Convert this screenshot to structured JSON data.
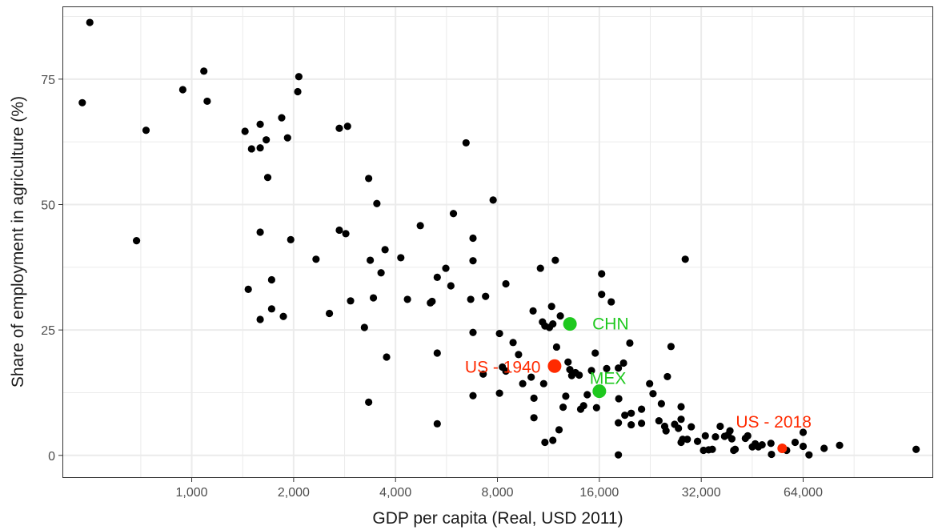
{
  "chart_data": {
    "type": "scatter",
    "xlabel": "GDP per capita (Real, USD 2011)",
    "ylabel": "Share of employment in agriculture (%)",
    "x_scale": "log2",
    "xlim": [
      415,
      155000
    ],
    "ylim": [
      -4.5,
      89.5
    ],
    "x_ticks": [
      {
        "value": 1000,
        "label": "1,000"
      },
      {
        "value": 2000,
        "label": "2,000"
      },
      {
        "value": 4000,
        "label": "4,000"
      },
      {
        "value": 8000,
        "label": "8,000"
      },
      {
        "value": 16000,
        "label": "16,000"
      },
      {
        "value": 32000,
        "label": "32,000"
      },
      {
        "value": 64000,
        "label": "64,000"
      }
    ],
    "y_ticks": [
      {
        "value": 0,
        "label": "0"
      },
      {
        "value": 25,
        "label": "25"
      },
      {
        "value": 50,
        "label": "50"
      },
      {
        "value": 75,
        "label": "75"
      }
    ],
    "grid": true,
    "colors": {
      "default": "#000000",
      "highlight_red": "#ff2a00",
      "highlight_green": "#1ec81e",
      "grid": "#ebebeb",
      "border": "#333333"
    },
    "highlights": [
      {
        "label": "US - 1940",
        "x": 11800,
        "y": 17.8,
        "color": "#ff2a00",
        "label_side": "left"
      },
      {
        "label": "CHN",
        "x": 13100,
        "y": 26.2,
        "color": "#1ec81e",
        "label_side": "right"
      },
      {
        "label": "MEX",
        "x": 16000,
        "y": 12.8,
        "color": "#1ec81e",
        "label_side": "above-right"
      },
      {
        "label": "US - 2018",
        "x": 55500,
        "y": 1.4,
        "color": "#ff2a00",
        "label_side": "above"
      }
    ],
    "points": [
      [
        500,
        86.3
      ],
      [
        475,
        70.3
      ],
      [
        687,
        42.8
      ],
      [
        733,
        64.8
      ],
      [
        941,
        72.9
      ],
      [
        1086,
        76.6
      ],
      [
        1111,
        70.6
      ],
      [
        1437,
        64.6
      ],
      [
        1502,
        61.1
      ],
      [
        1593,
        61.3
      ],
      [
        1593,
        66.0
      ],
      [
        1660,
        62.9
      ],
      [
        1677,
        55.4
      ],
      [
        1844,
        67.3
      ],
      [
        1919,
        63.3
      ],
      [
        2072,
        75.5
      ],
      [
        2057,
        72.5
      ],
      [
        1961,
        43.0
      ],
      [
        1593,
        44.5
      ],
      [
        1722,
        35.0
      ],
      [
        1469,
        33.1
      ],
      [
        1722,
        29.2
      ],
      [
        1593,
        27.1
      ],
      [
        1865,
        27.7
      ],
      [
        2329,
        39.1
      ],
      [
        2551,
        28.3
      ],
      [
        2946,
        30.8
      ],
      [
        2729,
        65.2
      ],
      [
        2886,
        65.6
      ],
      [
        2729,
        44.9
      ],
      [
        2852,
        44.2
      ],
      [
        3332,
        55.2
      ],
      [
        3368,
        38.9
      ],
      [
        3237,
        25.5
      ],
      [
        3332,
        10.6
      ],
      [
        3441,
        31.4
      ],
      [
        3523,
        50.2
      ],
      [
        3625,
        36.4
      ],
      [
        3725,
        41.0
      ],
      [
        3764,
        19.6
      ],
      [
        4146,
        39.4
      ],
      [
        4338,
        31.1
      ],
      [
        4734,
        45.8
      ],
      [
        5070,
        30.4
      ],
      [
        5129,
        30.7
      ],
      [
        5312,
        35.5
      ],
      [
        5312,
        20.4
      ],
      [
        5312,
        6.3
      ],
      [
        5631,
        37.3
      ],
      [
        5828,
        33.8
      ],
      [
        5930,
        48.2
      ],
      [
        6462,
        62.3
      ],
      [
        6670,
        31.1
      ],
      [
        6775,
        43.3
      ],
      [
        6775,
        38.8
      ],
      [
        6775,
        24.5
      ],
      [
        6775,
        11.9
      ],
      [
        7260,
        16.2
      ],
      [
        7380,
        31.7
      ],
      [
        7769,
        50.9
      ],
      [
        8113,
        24.3
      ],
      [
        8113,
        12.4
      ],
      [
        8274,
        17.6
      ],
      [
        8472,
        16.8
      ],
      [
        8472,
        34.2
      ],
      [
        8898,
        22.5
      ],
      [
        9235,
        20.1
      ],
      [
        9500,
        14.3
      ],
      [
        10064,
        15.6
      ],
      [
        10195,
        28.8
      ],
      [
        10255,
        7.5
      ],
      [
        10255,
        11.4
      ],
      [
        10717,
        37.3
      ],
      [
        10867,
        26.6
      ],
      [
        10956,
        14.3
      ],
      [
        11050,
        25.8
      ],
      [
        11050,
        2.6
      ],
      [
        11393,
        25.5
      ],
      [
        11563,
        29.7
      ],
      [
        11661,
        26.2
      ],
      [
        11661,
        3.0
      ],
      [
        11860,
        38.9
      ],
      [
        11960,
        21.6
      ],
      [
        12165,
        5.1
      ],
      [
        12270,
        27.8
      ],
      [
        12505,
        9.6
      ],
      [
        12734,
        11.8
      ],
      [
        12932,
        18.6
      ],
      [
        13092,
        17.1
      ],
      [
        13260,
        15.9
      ],
      [
        13600,
        16.5
      ],
      [
        13950,
        16.0
      ],
      [
        14090,
        9.2
      ],
      [
        14373,
        9.9
      ],
      [
        14737,
        12.1
      ],
      [
        15166,
        16.9
      ],
      [
        15558,
        20.4
      ],
      [
        15695,
        9.5
      ],
      [
        16252,
        36.2
      ],
      [
        16252,
        32.1
      ],
      [
        16817,
        17.3
      ],
      [
        17350,
        30.6
      ],
      [
        18210,
        17.4
      ],
      [
        18260,
        11.3
      ],
      [
        18210,
        6.5
      ],
      [
        18210,
        0.1
      ],
      [
        18860,
        18.4
      ],
      [
        19030,
        8.0
      ],
      [
        19685,
        22.4
      ],
      [
        19870,
        8.4
      ],
      [
        19870,
        6.1
      ],
      [
        21320,
        6.4
      ],
      [
        21320,
        9.2
      ],
      [
        22525,
        14.3
      ],
      [
        23050,
        12.3
      ],
      [
        24000,
        6.9
      ],
      [
        24400,
        10.3
      ],
      [
        24950,
        5.8
      ],
      [
        25180,
        4.9
      ],
      [
        25420,
        15.7
      ],
      [
        26050,
        21.7
      ],
      [
        26700,
        6.2
      ],
      [
        27400,
        5.4
      ],
      [
        27900,
        7.2
      ],
      [
        27900,
        9.7
      ],
      [
        27900,
        2.6
      ],
      [
        28200,
        3.2
      ],
      [
        28700,
        39.1
      ],
      [
        29100,
        3.2
      ],
      [
        29900,
        5.7
      ],
      [
        31200,
        2.8
      ],
      [
        32500,
        1.0
      ],
      [
        32900,
        3.9
      ],
      [
        33650,
        1.1
      ],
      [
        34500,
        1.2
      ],
      [
        35250,
        3.7
      ],
      [
        36400,
        5.8
      ],
      [
        37500,
        3.8
      ],
      [
        38400,
        4.1
      ],
      [
        38900,
        4.9
      ],
      [
        39400,
        3.3
      ],
      [
        39900,
        1.0
      ],
      [
        40300,
        1.2
      ],
      [
        43200,
        3.4
      ],
      [
        43900,
        3.9
      ],
      [
        45300,
        1.7
      ],
      [
        46200,
        2.3
      ],
      [
        47200,
        1.7
      ],
      [
        48400,
        2.1
      ],
      [
        51400,
        2.4
      ],
      [
        51600,
        0.2
      ],
      [
        57200,
        1.0
      ],
      [
        60600,
        2.6
      ],
      [
        64000,
        4.6
      ],
      [
        64000,
        1.8
      ],
      [
        66600,
        0.1
      ],
      [
        73800,
        1.4
      ],
      [
        82000,
        2.0
      ],
      [
        138000,
        1.2
      ]
    ]
  }
}
